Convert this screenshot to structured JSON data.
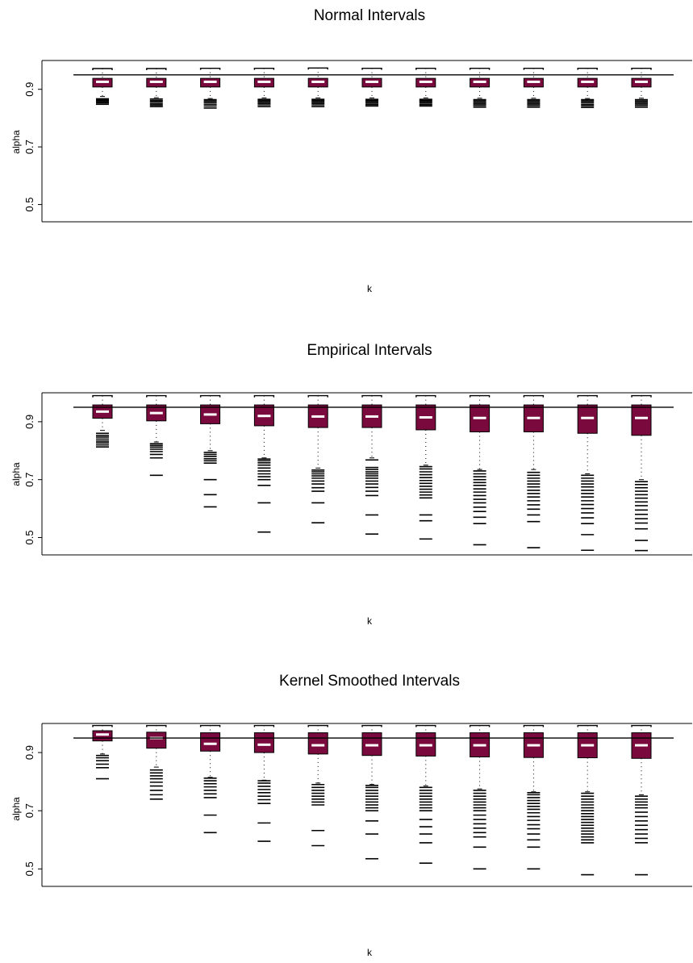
{
  "chart_data": [
    {
      "type": "boxplot",
      "title": "Normal Intervals",
      "xlabel": "k",
      "ylabel": "alpha",
      "yticks": [
        0.5,
        0.7,
        0.9
      ],
      "ylim": [
        0.44,
        1.0
      ],
      "reference_line": 0.95,
      "box_fill": "#7a0a3e",
      "median_color": "#ffffff",
      "boxes": [
        {
          "q1": 0.908,
          "median": 0.926,
          "q3": 0.938,
          "whisker_low": 0.875,
          "whisker_high": 0.972,
          "outliers": [
            0.848,
            0.853,
            0.857,
            0.861,
            0.864,
            0.867
          ]
        },
        {
          "q1": 0.908,
          "median": 0.926,
          "q3": 0.938,
          "whisker_low": 0.871,
          "whisker_high": 0.972,
          "outliers": [
            0.84,
            0.845,
            0.85,
            0.856,
            0.861,
            0.866
          ]
        },
        {
          "q1": 0.908,
          "median": 0.926,
          "q3": 0.938,
          "whisker_low": 0.868,
          "whisker_high": 0.973,
          "outliers": [
            0.835,
            0.842,
            0.848,
            0.854,
            0.859,
            0.864
          ]
        },
        {
          "q1": 0.908,
          "median": 0.926,
          "q3": 0.938,
          "whisker_low": 0.87,
          "whisker_high": 0.973,
          "outliers": [
            0.84,
            0.846,
            0.851,
            0.856,
            0.861,
            0.865
          ]
        },
        {
          "q1": 0.908,
          "median": 0.926,
          "q3": 0.938,
          "whisker_low": 0.87,
          "whisker_high": 0.974,
          "outliers": [
            0.84,
            0.846,
            0.851,
            0.856,
            0.861,
            0.865
          ]
        },
        {
          "q1": 0.908,
          "median": 0.926,
          "q3": 0.938,
          "whisker_low": 0.87,
          "whisker_high": 0.973,
          "outliers": [
            0.842,
            0.847,
            0.852,
            0.857,
            0.861,
            0.865
          ]
        },
        {
          "q1": 0.908,
          "median": 0.926,
          "q3": 0.938,
          "whisker_low": 0.87,
          "whisker_high": 0.973,
          "outliers": [
            0.842,
            0.847,
            0.852,
            0.857,
            0.861,
            0.865
          ]
        },
        {
          "q1": 0.908,
          "median": 0.926,
          "q3": 0.938,
          "whisker_low": 0.869,
          "whisker_high": 0.973,
          "outliers": [
            0.838,
            0.844,
            0.849,
            0.854,
            0.859,
            0.864
          ]
        },
        {
          "q1": 0.908,
          "median": 0.926,
          "q3": 0.938,
          "whisker_low": 0.869,
          "whisker_high": 0.973,
          "outliers": [
            0.838,
            0.844,
            0.849,
            0.854,
            0.859,
            0.864
          ]
        },
        {
          "q1": 0.908,
          "median": 0.926,
          "q3": 0.938,
          "whisker_low": 0.868,
          "whisker_high": 0.973,
          "outliers": [
            0.837,
            0.843,
            0.848,
            0.854,
            0.859,
            0.864
          ]
        },
        {
          "q1": 0.908,
          "median": 0.926,
          "q3": 0.938,
          "whisker_low": 0.869,
          "whisker_high": 0.973,
          "outliers": [
            0.838,
            0.844,
            0.849,
            0.854,
            0.859,
            0.864
          ]
        }
      ]
    },
    {
      "type": "boxplot",
      "title": "Empirical Intervals",
      "xlabel": "k",
      "ylabel": "alpha",
      "yticks": [
        0.5,
        0.7,
        0.9
      ],
      "ylim": [
        0.44,
        1.0
      ],
      "reference_line": 0.95,
      "box_fill": "#7a0a3e",
      "median_color": "#ffffff",
      "boxes": [
        {
          "q1": 0.912,
          "median": 0.935,
          "q3": 0.958,
          "whisker_low": 0.87,
          "whisker_high": 0.99,
          "outliers": [
            0.813,
            0.82,
            0.827,
            0.833,
            0.84,
            0.847,
            0.853,
            0.86
          ]
        },
        {
          "q1": 0.903,
          "median": 0.93,
          "q3": 0.958,
          "whisker_low": 0.83,
          "whisker_high": 0.99,
          "outliers": [
            0.715,
            0.775,
            0.787,
            0.797,
            0.805,
            0.812,
            0.818,
            0.824
          ]
        },
        {
          "q1": 0.893,
          "median": 0.925,
          "q3": 0.958,
          "whisker_low": 0.8,
          "whisker_high": 0.99,
          "outliers": [
            0.606,
            0.648,
            0.7,
            0.757,
            0.765,
            0.772,
            0.78,
            0.787,
            0.794
          ]
        },
        {
          "q1": 0.886,
          "median": 0.92,
          "q3": 0.958,
          "whisker_low": 0.775,
          "whisker_high": 0.99,
          "outliers": [
            0.519,
            0.62,
            0.68,
            0.7,
            0.71,
            0.72,
            0.73,
            0.74,
            0.75,
            0.758,
            0.765,
            0.771
          ]
        },
        {
          "q1": 0.88,
          "median": 0.918,
          "q3": 0.958,
          "whisker_low": 0.74,
          "whisker_high": 0.99,
          "outliers": [
            0.551,
            0.62,
            0.66,
            0.672,
            0.685,
            0.695,
            0.705,
            0.713,
            0.72,
            0.727,
            0.733
          ]
        },
        {
          "q1": 0.88,
          "median": 0.918,
          "q3": 0.958,
          "whisker_low": 0.775,
          "whisker_high": 0.99,
          "outliers": [
            0.512,
            0.578,
            0.645,
            0.66,
            0.673,
            0.685,
            0.695,
            0.705,
            0.713,
            0.72,
            0.727,
            0.735,
            0.742,
            0.768
          ]
        },
        {
          "q1": 0.872,
          "median": 0.915,
          "q3": 0.958,
          "whisker_low": 0.75,
          "whisker_high": 0.99,
          "outliers": [
            0.495,
            0.558,
            0.578,
            0.637,
            0.647,
            0.657,
            0.667,
            0.677,
            0.687,
            0.697,
            0.707,
            0.717,
            0.727,
            0.737,
            0.745
          ]
        },
        {
          "q1": 0.865,
          "median": 0.913,
          "q3": 0.958,
          "whisker_low": 0.735,
          "whisker_high": 0.99,
          "outliers": [
            0.475,
            0.548,
            0.57,
            0.59,
            0.605,
            0.62,
            0.632,
            0.645,
            0.657,
            0.668,
            0.68,
            0.69,
            0.7,
            0.71,
            0.72,
            0.73
          ]
        },
        {
          "q1": 0.865,
          "median": 0.913,
          "q3": 0.958,
          "whisker_low": 0.735,
          "whisker_high": 0.99,
          "outliers": [
            0.465,
            0.555,
            0.578,
            0.598,
            0.613,
            0.627,
            0.64,
            0.652,
            0.663,
            0.675,
            0.685,
            0.695,
            0.705,
            0.715,
            0.725
          ]
        },
        {
          "q1": 0.86,
          "median": 0.913,
          "q3": 0.958,
          "whisker_low": 0.72,
          "whisker_high": 0.99,
          "outliers": [
            0.456,
            0.51,
            0.548,
            0.568,
            0.585,
            0.6,
            0.614,
            0.627,
            0.64,
            0.652,
            0.663,
            0.675,
            0.685,
            0.695,
            0.705,
            0.715
          ]
        },
        {
          "q1": 0.853,
          "median": 0.913,
          "q3": 0.958,
          "whisker_low": 0.7,
          "whisker_high": 0.99,
          "outliers": [
            0.455,
            0.49,
            0.53,
            0.55,
            0.565,
            0.58,
            0.595,
            0.61,
            0.623,
            0.636,
            0.648,
            0.66,
            0.672,
            0.683,
            0.693
          ]
        }
      ]
    },
    {
      "type": "boxplot",
      "title": "Kernel Smoothed Intervals",
      "xlabel": "k",
      "ylabel": "alpha",
      "yticks": [
        0.5,
        0.7,
        0.9
      ],
      "ylim": [
        0.44,
        1.0
      ],
      "reference_line": 0.95,
      "box_fill": "#7a0a3e",
      "median_color": "#ffffff",
      "boxes": [
        {
          "q1": 0.94,
          "median": 0.962,
          "q3": 0.975,
          "whisker_low": 0.895,
          "whisker_high": 0.993,
          "outliers": [
            0.81,
            0.848,
            0.86,
            0.872,
            0.882,
            0.89
          ]
        },
        {
          "q1": 0.915,
          "median": 0.95,
          "q3": 0.97,
          "whisker_low": 0.85,
          "whisker_high": 0.993,
          "outliers": [
            0.74,
            0.755,
            0.77,
            0.785,
            0.798,
            0.81,
            0.82,
            0.83,
            0.84
          ]
        },
        {
          "q1": 0.905,
          "median": 0.93,
          "q3": 0.968,
          "whisker_low": 0.815,
          "whisker_high": 0.993,
          "outliers": [
            0.625,
            0.685,
            0.745,
            0.758,
            0.77,
            0.782,
            0.793,
            0.803,
            0.812
          ]
        },
        {
          "q1": 0.9,
          "median": 0.927,
          "q3": 0.968,
          "whisker_low": 0.805,
          "whisker_high": 0.993,
          "outliers": [
            0.595,
            0.658,
            0.725,
            0.738,
            0.75,
            0.762,
            0.773,
            0.784,
            0.795,
            0.803
          ]
        },
        {
          "q1": 0.895,
          "median": 0.925,
          "q3": 0.968,
          "whisker_low": 0.795,
          "whisker_high": 0.993,
          "outliers": [
            0.58,
            0.632,
            0.72,
            0.73,
            0.74,
            0.75,
            0.76,
            0.77,
            0.78,
            0.79
          ]
        },
        {
          "q1": 0.89,
          "median": 0.925,
          "q3": 0.968,
          "whisker_low": 0.79,
          "whisker_high": 0.993,
          "outliers": [
            0.535,
            0.62,
            0.665,
            0.7,
            0.71,
            0.72,
            0.73,
            0.74,
            0.75,
            0.76,
            0.77,
            0.78,
            0.787
          ]
        },
        {
          "q1": 0.888,
          "median": 0.925,
          "q3": 0.968,
          "whisker_low": 0.785,
          "whisker_high": 0.993,
          "outliers": [
            0.52,
            0.59,
            0.62,
            0.645,
            0.67,
            0.7,
            0.71,
            0.72,
            0.73,
            0.74,
            0.75,
            0.76,
            0.77,
            0.78
          ]
        },
        {
          "q1": 0.885,
          "median": 0.925,
          "q3": 0.968,
          "whisker_low": 0.775,
          "whisker_high": 0.993,
          "outliers": [
            0.5,
            0.575,
            0.61,
            0.625,
            0.64,
            0.655,
            0.67,
            0.685,
            0.7,
            0.71,
            0.72,
            0.73,
            0.74,
            0.75,
            0.76,
            0.77
          ]
        },
        {
          "q1": 0.883,
          "median": 0.925,
          "q3": 0.968,
          "whisker_low": 0.765,
          "whisker_high": 0.993,
          "outliers": [
            0.5,
            0.575,
            0.6,
            0.62,
            0.638,
            0.652,
            0.667,
            0.68,
            0.693,
            0.705,
            0.715,
            0.725,
            0.735,
            0.745,
            0.755,
            0.762
          ]
        },
        {
          "q1": 0.882,
          "median": 0.925,
          "q3": 0.968,
          "whisker_low": 0.765,
          "whisker_high": 0.993,
          "outliers": [
            0.48,
            0.59,
            0.6,
            0.61,
            0.62,
            0.63,
            0.64,
            0.65,
            0.66,
            0.67,
            0.68,
            0.69,
            0.7,
            0.71,
            0.72,
            0.73,
            0.74,
            0.75,
            0.76
          ]
        },
        {
          "q1": 0.88,
          "median": 0.925,
          "q3": 0.968,
          "whisker_low": 0.755,
          "whisker_high": 0.993,
          "outliers": [
            0.48,
            0.59,
            0.605,
            0.62,
            0.635,
            0.65,
            0.665,
            0.68,
            0.695,
            0.71,
            0.72,
            0.73,
            0.74,
            0.75
          ]
        }
      ]
    }
  ]
}
